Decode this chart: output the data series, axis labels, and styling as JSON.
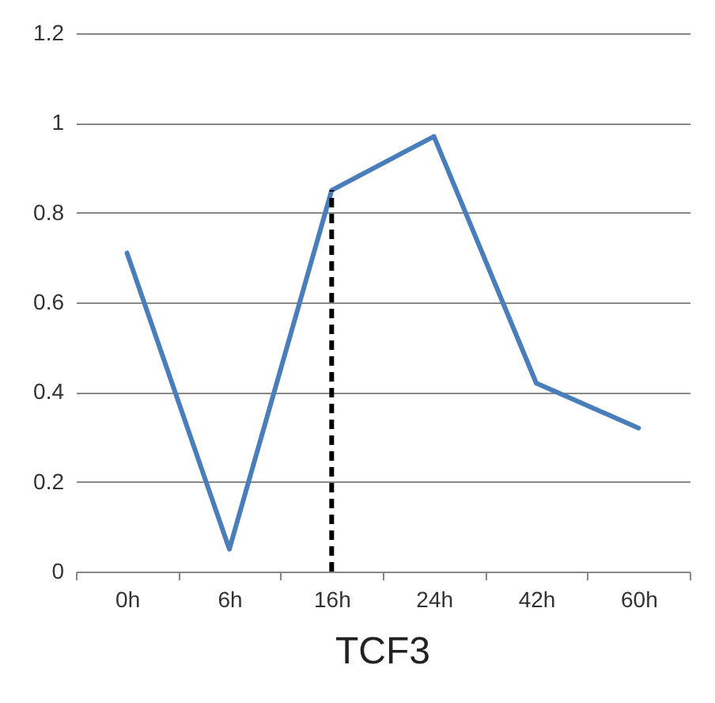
{
  "chart_data": {
    "type": "line",
    "title": "TCF3",
    "categories": [
      "0h",
      "6h",
      "16h",
      "24h",
      "42h",
      "60h"
    ],
    "series": [
      {
        "color": "#4a7ebb",
        "values": [
          0.71,
          0.05,
          0.85,
          0.97,
          0.42,
          0.32
        ]
      }
    ],
    "ylim": [
      0,
      1.2
    ],
    "yticks": [
      0,
      0.2,
      0.4,
      0.6,
      0.8,
      1,
      1.2
    ],
    "grid": "y",
    "marker": "none",
    "line_style": "solid",
    "ref_lines": [
      {
        "axis": "x",
        "value": "16h",
        "color": "#000000",
        "line_style": "dashed"
      }
    ]
  }
}
